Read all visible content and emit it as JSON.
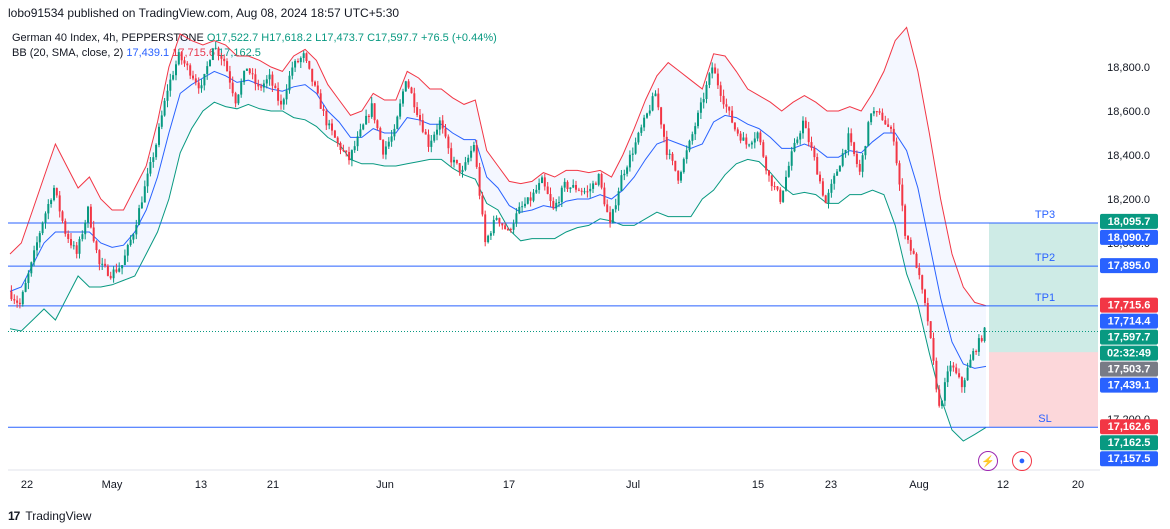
{
  "header": {
    "publisher": "lobo91534 published on TradingView.com, Aug 08, 2024 18:57 UTC+5:30"
  },
  "legend": {
    "symbol": "German 40 Index, 4h, PEPPERSTONE",
    "open": "O17,522.7",
    "high": "H17,618.2",
    "low": "L17,473.7",
    "close": "C17,597.7",
    "change": "+76.5 (+0.44%)",
    "bb_name": "BB (20, SMA, close, 2)",
    "bb_basis": "17,439.1",
    "bb_upper": "17,715.6",
    "bb_lower": "17,162.5"
  },
  "footer": {
    "brand": "TradingView"
  },
  "colors": {
    "up": "#089981",
    "down": "#f23645",
    "basis": "#2962ff",
    "upper": "#f23645",
    "lower": "#089981",
    "band_fill": "#2962ff",
    "level_line": "#2962ff",
    "target_zone": "#089981",
    "stop_zone": "#f23645"
  },
  "chart_data": {
    "type": "candlestick",
    "x_tick_labels": [
      "22",
      "May",
      "13",
      "21",
      "Jun",
      "17",
      "Jul",
      "15",
      "23",
      "Aug",
      "12",
      "20"
    ],
    "y_tick_labels": [
      "18,800.0",
      "18,600.0",
      "18,400.0",
      "18,200.0",
      "18,000.0",
      "17,200.0"
    ],
    "y_ticks": [
      18800,
      18600,
      18400,
      18200,
      18000,
      17200
    ],
    "ylim": [
      16960,
      19010
    ],
    "price_path": [
      17780,
      17720,
      17900,
      18100,
      18250,
      18050,
      17950,
      18150,
      17900,
      17860,
      17900,
      18050,
      18250,
      18450,
      18700,
      18850,
      18780,
      18700,
      18900,
      18830,
      18650,
      18800,
      18700,
      18750,
      18620,
      18800,
      18850,
      18700,
      18550,
      18450,
      18380,
      18500,
      18620,
      18420,
      18500,
      18750,
      18600,
      18450,
      18550,
      18380,
      18320,
      18450,
      18000,
      18120,
      18050,
      18150,
      18200,
      18280,
      18150,
      18260,
      18250,
      18230,
      18300,
      18080,
      18300,
      18420,
      18550,
      18680,
      18420,
      18300,
      18450,
      18620,
      18800,
      18650,
      18520,
      18450,
      18500,
      18300,
      18200,
      18400,
      18550,
      18380,
      18180,
      18330,
      18480,
      18320,
      18600,
      18570,
      18480,
      18050,
      17900,
      17650,
      17250,
      17450,
      17350,
      17500,
      17597
    ],
    "bb_upper_path": [
      17950,
      18000,
      18150,
      18300,
      18450,
      18350,
      18250,
      18300,
      18200,
      18150,
      18150,
      18250,
      18350,
      18550,
      18800,
      18950,
      18920,
      18900,
      18920,
      18900,
      18850,
      18850,
      18830,
      18800,
      18780,
      18850,
      18880,
      18830,
      18720,
      18650,
      18580,
      18600,
      18680,
      18650,
      18650,
      18780,
      18750,
      18700,
      18700,
      18660,
      18630,
      18650,
      18420,
      18350,
      18280,
      18270,
      18280,
      18320,
      18300,
      18330,
      18330,
      18320,
      18330,
      18300,
      18400,
      18520,
      18650,
      18760,
      18820,
      18780,
      18740,
      18700,
      18860,
      18850,
      18780,
      18700,
      18670,
      18640,
      18600,
      18640,
      18670,
      18640,
      18600,
      18600,
      18620,
      18600,
      18680,
      18780,
      18920,
      18980,
      18780,
      18500,
      18200,
      17950,
      17800,
      17730,
      17715
    ],
    "bb_basis_path": [
      17780,
      17800,
      17900,
      18000,
      18050,
      18050,
      18050,
      18050,
      18000,
      17980,
      17990,
      18050,
      18150,
      18300,
      18500,
      18680,
      18720,
      18750,
      18780,
      18760,
      18730,
      18740,
      18720,
      18700,
      18690,
      18710,
      18720,
      18680,
      18600,
      18550,
      18480,
      18480,
      18520,
      18500,
      18500,
      18570,
      18560,
      18540,
      18540,
      18500,
      18470,
      18470,
      18300,
      18250,
      18170,
      18140,
      18150,
      18170,
      18160,
      18190,
      18200,
      18200,
      18220,
      18200,
      18240,
      18300,
      18380,
      18450,
      18470,
      18450,
      18430,
      18450,
      18550,
      18580,
      18570,
      18540,
      18520,
      18480,
      18430,
      18430,
      18450,
      18430,
      18390,
      18390,
      18420,
      18410,
      18460,
      18500,
      18500,
      18420,
      18250,
      18000,
      17750,
      17550,
      17450,
      17430,
      17439
    ],
    "bb_lower_path": [
      17610,
      17600,
      17650,
      17700,
      17650,
      17750,
      17850,
      17800,
      17800,
      17810,
      17830,
      17850,
      17950,
      18050,
      18200,
      18410,
      18520,
      18600,
      18640,
      18620,
      18610,
      18630,
      18610,
      18600,
      18600,
      18570,
      18560,
      18530,
      18480,
      18450,
      18380,
      18360,
      18360,
      18350,
      18350,
      18360,
      18370,
      18380,
      18380,
      18340,
      18310,
      18290,
      18180,
      18150,
      18060,
      18010,
      18020,
      18020,
      18020,
      18050,
      18070,
      18080,
      18110,
      18100,
      18080,
      18080,
      18110,
      18140,
      18120,
      18120,
      18120,
      18200,
      18240,
      18310,
      18360,
      18380,
      18370,
      18320,
      18260,
      18220,
      18230,
      18220,
      18180,
      18180,
      18220,
      18220,
      18240,
      18220,
      18080,
      17860,
      17720,
      17500,
      17300,
      17150,
      17100,
      17130,
      17162
    ],
    "horizontal_levels": [
      {
        "name": "TP3",
        "value": 18090.7
      },
      {
        "name": "TP2",
        "value": 17895.0
      },
      {
        "name": "TP1",
        "value": 17714.4
      },
      {
        "name": "SL",
        "value": 17162.6
      }
    ],
    "entry_price": 17503.7,
    "current_price": 17597.7,
    "price_labels": [
      {
        "text": "18,095.7",
        "value": 18095.7,
        "bg": "#089981"
      },
      {
        "text": "18,090.7",
        "value": 18090.7,
        "bg": "#2962ff"
      },
      {
        "text": "17,895.0",
        "value": 17895.0,
        "bg": "#2962ff"
      },
      {
        "text": "17,715.6",
        "value": 17715.6,
        "bg": "#f23645"
      },
      {
        "text": "17,714.4",
        "value": 17714.4,
        "bg": "#2962ff"
      },
      {
        "text": "17,597.7",
        "value": 17597.7,
        "bg": "#089981"
      },
      {
        "text": "02:32:49",
        "value": 17555,
        "bg": "#089981"
      },
      {
        "text": "17,503.7",
        "value": 17503.7,
        "bg": "#787b86"
      },
      {
        "text": "17,439.1",
        "value": 17439.1,
        "bg": "#2962ff"
      },
      {
        "text": "17,162.6",
        "value": 17162.6,
        "bg": "#f23645"
      },
      {
        "text": "17,162.5",
        "value": 17162.5,
        "bg": "#089981"
      },
      {
        "text": "17,157.5",
        "value": 17157.5,
        "bg": "#2962ff"
      }
    ]
  }
}
